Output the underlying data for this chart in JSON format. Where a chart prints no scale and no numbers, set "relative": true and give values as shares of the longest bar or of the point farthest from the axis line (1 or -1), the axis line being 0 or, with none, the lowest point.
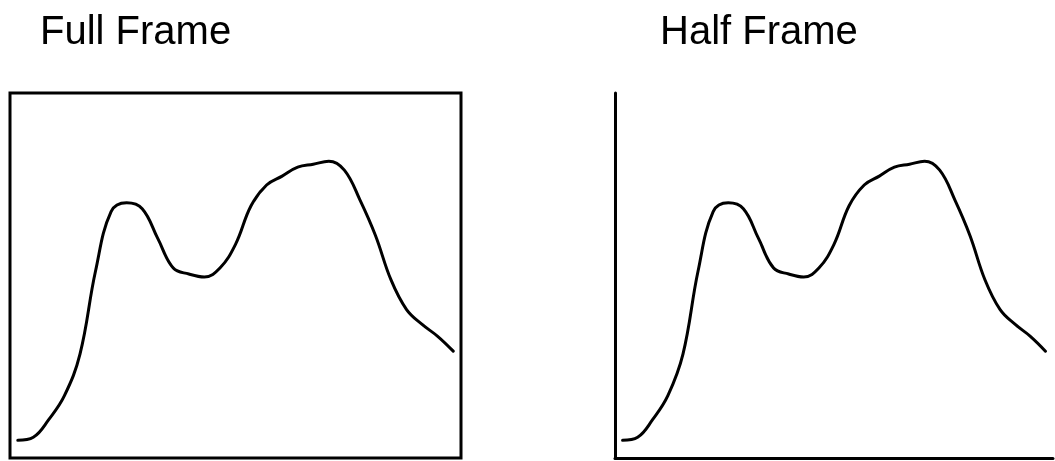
{
  "chart_data": [
    {
      "type": "line",
      "title": "Full Frame",
      "relative": true,
      "tick_labels": false,
      "grid": false,
      "marker": "none",
      "line_style": "solid",
      "categories": [
        null,
        null,
        null,
        null,
        null,
        null,
        null,
        null,
        null,
        null,
        null,
        null,
        null,
        null,
        null,
        null,
        null,
        null,
        null,
        null,
        null,
        null,
        null,
        null,
        null,
        null,
        null,
        null,
        null
      ],
      "series": [
        {
          "color": "#000000",
          "values": [
            0.06,
            0.07,
            0.13,
            0.21,
            0.35,
            0.63,
            0.83,
            0.86,
            0.84,
            0.74,
            0.64,
            0.62,
            0.61,
            0.64,
            0.72,
            0.85,
            0.92,
            0.95,
            0.98,
            0.99,
            1,
            0.97,
            0.87,
            0.75,
            0.6,
            0.5,
            0.45,
            0.41,
            0.36
          ]
        }
      ]
    },
    {
      "type": "line",
      "title": "Half Frame",
      "relative": true,
      "tick_labels": false,
      "grid": false,
      "marker": "none",
      "line_style": "solid",
      "categories": [
        null,
        null,
        null,
        null,
        null,
        null,
        null,
        null,
        null,
        null,
        null,
        null,
        null,
        null,
        null,
        null,
        null,
        null,
        null,
        null,
        null,
        null,
        null,
        null,
        null,
        null,
        null,
        null,
        null
      ],
      "series": [
        {
          "color": "#000000",
          "values": [
            0.06,
            0.07,
            0.13,
            0.21,
            0.35,
            0.63,
            0.83,
            0.86,
            0.84,
            0.74,
            0.64,
            0.62,
            0.61,
            0.64,
            0.72,
            0.85,
            0.92,
            0.95,
            0.98,
            0.99,
            1,
            0.97,
            0.87,
            0.75,
            0.6,
            0.5,
            0.45,
            0.41,
            0.36
          ]
        }
      ]
    }
  ]
}
